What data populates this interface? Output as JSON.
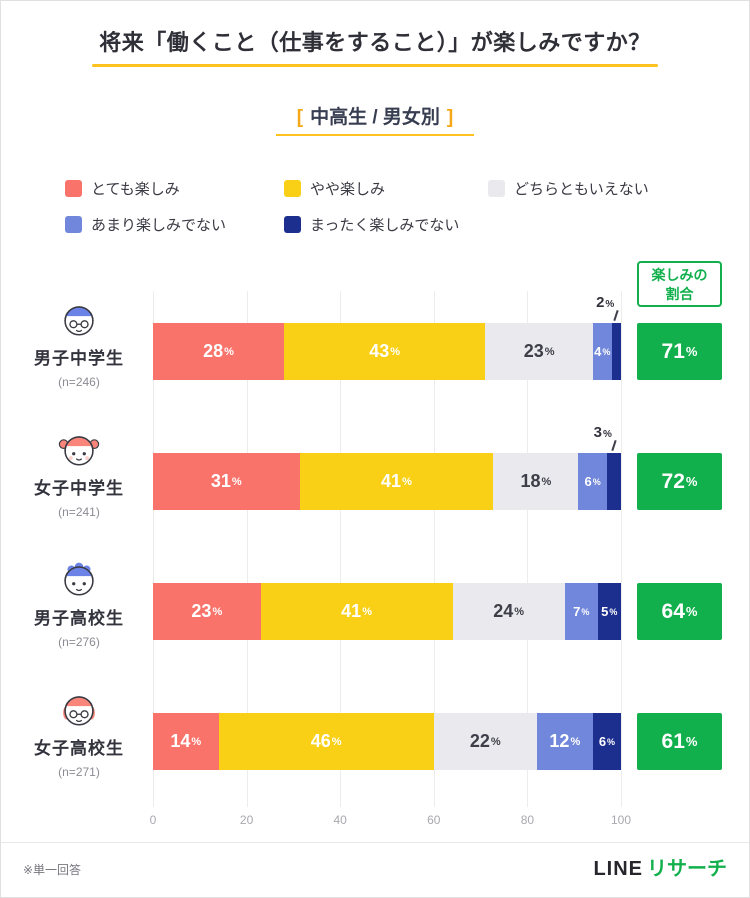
{
  "header": {
    "title": "将来「働くこと（仕事をすること）」が楽しみですか？",
    "subtitle": "中高生 / 男女別",
    "bracket_left": "[",
    "bracket_right": "]"
  },
  "colors": {
    "accent_yellow": "#FFC21E",
    "bracket_orange": "#F6A818",
    "green": "#12B04C",
    "grid": "#ECECEC"
  },
  "legend": [
    {
      "label": "とても楽しみ",
      "color": "#F9736B"
    },
    {
      "label": "やや楽しみ",
      "color": "#FAD016"
    },
    {
      "label": "どちらともいえない",
      "color": "#E9E9EE"
    },
    {
      "label": "あまり楽しみでない",
      "color": "#7187DB"
    },
    {
      "label": "まったく楽しみでない",
      "color": "#1D2F8E"
    }
  ],
  "result_header": {
    "line1": "楽しみの",
    "line2": "割合"
  },
  "chart_data": {
    "type": "bar",
    "orientation": "horizontal",
    "stacked": true,
    "unit_suffix": "%",
    "categories": [
      "男子中学生",
      "女子中学生",
      "男子高校生",
      "女子高校生"
    ],
    "sample_sizes": [
      "(n=246)",
      "(n=241)",
      "(n=276)",
      "(n=271)"
    ],
    "avatars": [
      "junior-boy-icon",
      "junior-girl-icon",
      "senior-boy-icon",
      "senior-girl-icon"
    ],
    "series": [
      {
        "name": "とても楽しみ",
        "color": "#F9736B",
        "values": [
          28,
          31,
          23,
          14
        ]
      },
      {
        "name": "やや楽しみ",
        "color": "#FAD016",
        "values": [
          43,
          41,
          41,
          46
        ]
      },
      {
        "name": "どちらともいえない",
        "color": "#E9E9EE",
        "values": [
          23,
          18,
          24,
          22
        ]
      },
      {
        "name": "あまり楽しみでない",
        "color": "#7187DB",
        "values": [
          4,
          6,
          7,
          12
        ]
      },
      {
        "name": "まったく楽しみでない",
        "color": "#1D2F8E",
        "values": [
          2,
          3,
          5,
          6
        ]
      }
    ],
    "totals_label": "楽しみの割合",
    "totals": [
      71,
      72,
      64,
      61
    ],
    "xlim": [
      0,
      100
    ],
    "x_ticks": [
      0,
      20,
      40,
      60,
      80,
      100
    ],
    "callouts": [
      {
        "row": 0,
        "series_index": 4
      },
      {
        "row": 1,
        "series_index": 4
      }
    ],
    "legend_position": "top",
    "grid": true
  },
  "footer": {
    "note": "※単一回答",
    "brand_line": "LINE",
    "brand_research": "リサーチ"
  }
}
